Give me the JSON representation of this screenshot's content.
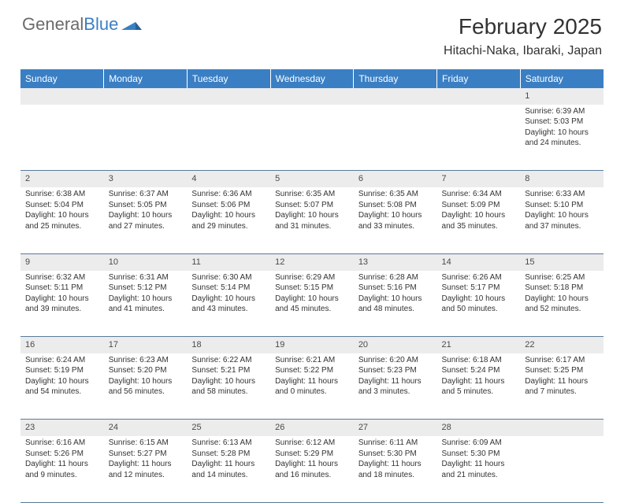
{
  "logo": {
    "text1": "General",
    "text2": "Blue"
  },
  "title": "February 2025",
  "location": "Hitachi-Naka, Ibaraki, Japan",
  "colors": {
    "header_bg": "#3a7fc4",
    "header_text": "#ffffff",
    "daynum_bg": "#ececec",
    "cell_border": "#5a7a9a",
    "body_text": "#333333",
    "logo_gray": "#6b6b6b",
    "logo_blue": "#3a7fc4"
  },
  "weekdays": [
    "Sunday",
    "Monday",
    "Tuesday",
    "Wednesday",
    "Thursday",
    "Friday",
    "Saturday"
  ],
  "weeks": [
    {
      "nums": [
        "",
        "",
        "",
        "",
        "",
        "",
        "1"
      ],
      "cells": [
        null,
        null,
        null,
        null,
        null,
        null,
        {
          "sunrise": "Sunrise: 6:39 AM",
          "sunset": "Sunset: 5:03 PM",
          "day1": "Daylight: 10 hours",
          "day2": "and 24 minutes."
        }
      ]
    },
    {
      "nums": [
        "2",
        "3",
        "4",
        "5",
        "6",
        "7",
        "8"
      ],
      "cells": [
        {
          "sunrise": "Sunrise: 6:38 AM",
          "sunset": "Sunset: 5:04 PM",
          "day1": "Daylight: 10 hours",
          "day2": "and 25 minutes."
        },
        {
          "sunrise": "Sunrise: 6:37 AM",
          "sunset": "Sunset: 5:05 PM",
          "day1": "Daylight: 10 hours",
          "day2": "and 27 minutes."
        },
        {
          "sunrise": "Sunrise: 6:36 AM",
          "sunset": "Sunset: 5:06 PM",
          "day1": "Daylight: 10 hours",
          "day2": "and 29 minutes."
        },
        {
          "sunrise": "Sunrise: 6:35 AM",
          "sunset": "Sunset: 5:07 PM",
          "day1": "Daylight: 10 hours",
          "day2": "and 31 minutes."
        },
        {
          "sunrise": "Sunrise: 6:35 AM",
          "sunset": "Sunset: 5:08 PM",
          "day1": "Daylight: 10 hours",
          "day2": "and 33 minutes."
        },
        {
          "sunrise": "Sunrise: 6:34 AM",
          "sunset": "Sunset: 5:09 PM",
          "day1": "Daylight: 10 hours",
          "day2": "and 35 minutes."
        },
        {
          "sunrise": "Sunrise: 6:33 AM",
          "sunset": "Sunset: 5:10 PM",
          "day1": "Daylight: 10 hours",
          "day2": "and 37 minutes."
        }
      ]
    },
    {
      "nums": [
        "9",
        "10",
        "11",
        "12",
        "13",
        "14",
        "15"
      ],
      "cells": [
        {
          "sunrise": "Sunrise: 6:32 AM",
          "sunset": "Sunset: 5:11 PM",
          "day1": "Daylight: 10 hours",
          "day2": "and 39 minutes."
        },
        {
          "sunrise": "Sunrise: 6:31 AM",
          "sunset": "Sunset: 5:12 PM",
          "day1": "Daylight: 10 hours",
          "day2": "and 41 minutes."
        },
        {
          "sunrise": "Sunrise: 6:30 AM",
          "sunset": "Sunset: 5:14 PM",
          "day1": "Daylight: 10 hours",
          "day2": "and 43 minutes."
        },
        {
          "sunrise": "Sunrise: 6:29 AM",
          "sunset": "Sunset: 5:15 PM",
          "day1": "Daylight: 10 hours",
          "day2": "and 45 minutes."
        },
        {
          "sunrise": "Sunrise: 6:28 AM",
          "sunset": "Sunset: 5:16 PM",
          "day1": "Daylight: 10 hours",
          "day2": "and 48 minutes."
        },
        {
          "sunrise": "Sunrise: 6:26 AM",
          "sunset": "Sunset: 5:17 PM",
          "day1": "Daylight: 10 hours",
          "day2": "and 50 minutes."
        },
        {
          "sunrise": "Sunrise: 6:25 AM",
          "sunset": "Sunset: 5:18 PM",
          "day1": "Daylight: 10 hours",
          "day2": "and 52 minutes."
        }
      ]
    },
    {
      "nums": [
        "16",
        "17",
        "18",
        "19",
        "20",
        "21",
        "22"
      ],
      "cells": [
        {
          "sunrise": "Sunrise: 6:24 AM",
          "sunset": "Sunset: 5:19 PM",
          "day1": "Daylight: 10 hours",
          "day2": "and 54 minutes."
        },
        {
          "sunrise": "Sunrise: 6:23 AM",
          "sunset": "Sunset: 5:20 PM",
          "day1": "Daylight: 10 hours",
          "day2": "and 56 minutes."
        },
        {
          "sunrise": "Sunrise: 6:22 AM",
          "sunset": "Sunset: 5:21 PM",
          "day1": "Daylight: 10 hours",
          "day2": "and 58 minutes."
        },
        {
          "sunrise": "Sunrise: 6:21 AM",
          "sunset": "Sunset: 5:22 PM",
          "day1": "Daylight: 11 hours",
          "day2": "and 0 minutes."
        },
        {
          "sunrise": "Sunrise: 6:20 AM",
          "sunset": "Sunset: 5:23 PM",
          "day1": "Daylight: 11 hours",
          "day2": "and 3 minutes."
        },
        {
          "sunrise": "Sunrise: 6:18 AM",
          "sunset": "Sunset: 5:24 PM",
          "day1": "Daylight: 11 hours",
          "day2": "and 5 minutes."
        },
        {
          "sunrise": "Sunrise: 6:17 AM",
          "sunset": "Sunset: 5:25 PM",
          "day1": "Daylight: 11 hours",
          "day2": "and 7 minutes."
        }
      ]
    },
    {
      "nums": [
        "23",
        "24",
        "25",
        "26",
        "27",
        "28",
        ""
      ],
      "cells": [
        {
          "sunrise": "Sunrise: 6:16 AM",
          "sunset": "Sunset: 5:26 PM",
          "day1": "Daylight: 11 hours",
          "day2": "and 9 minutes."
        },
        {
          "sunrise": "Sunrise: 6:15 AM",
          "sunset": "Sunset: 5:27 PM",
          "day1": "Daylight: 11 hours",
          "day2": "and 12 minutes."
        },
        {
          "sunrise": "Sunrise: 6:13 AM",
          "sunset": "Sunset: 5:28 PM",
          "day1": "Daylight: 11 hours",
          "day2": "and 14 minutes."
        },
        {
          "sunrise": "Sunrise: 6:12 AM",
          "sunset": "Sunset: 5:29 PM",
          "day1": "Daylight: 11 hours",
          "day2": "and 16 minutes."
        },
        {
          "sunrise": "Sunrise: 6:11 AM",
          "sunset": "Sunset: 5:30 PM",
          "day1": "Daylight: 11 hours",
          "day2": "and 18 minutes."
        },
        {
          "sunrise": "Sunrise: 6:09 AM",
          "sunset": "Sunset: 5:30 PM",
          "day1": "Daylight: 11 hours",
          "day2": "and 21 minutes."
        },
        null
      ]
    }
  ]
}
